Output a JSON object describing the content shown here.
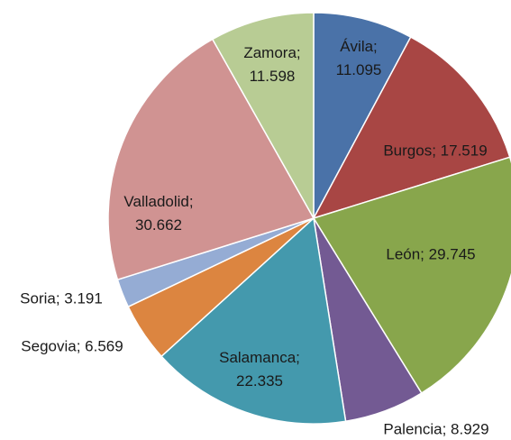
{
  "chart_data": {
    "type": "pie",
    "values": [
      11095,
      17519,
      29745,
      8929,
      22335,
      6569,
      3191,
      30662,
      11598
    ],
    "value_labels": [
      "Ávila; 11.095",
      "Burgos; 17.519",
      "León; 29.745",
      "Palencia; 8.929",
      "Salamanca; 22.335",
      "Segovia; 6.569",
      "Soria; 3.191",
      "Valladolid; 30.662",
      "Zamora; 11.598"
    ],
    "colors": [
      "#4a72a8",
      "#a84644",
      "#88a64c",
      "#735a93",
      "#4499ad",
      "#dc8540",
      "#95acd4",
      "#d09392",
      "#b8cc94"
    ]
  }
}
